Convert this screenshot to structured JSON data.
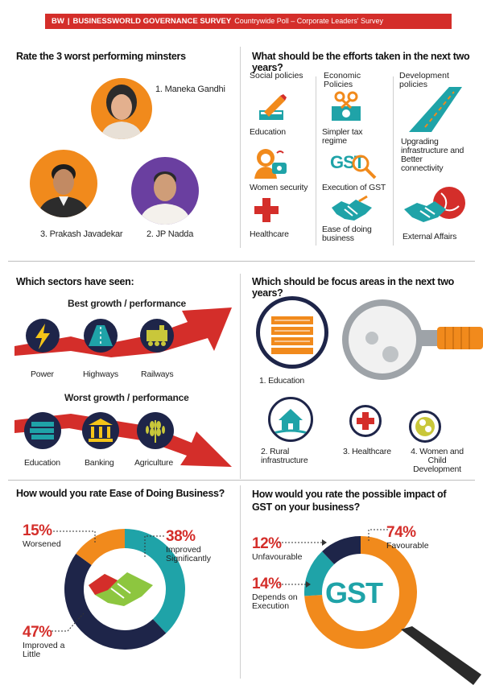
{
  "banner": {
    "brand": "BW",
    "title": "BUSINESSWORLD GOVERNANCE SURVEY",
    "subtitle": "Countrywide Poll – Corporate Leaders' Survey"
  },
  "ministers": {
    "question": "Rate the 3 worst performing minsters",
    "first": "1. Maneka Gandhi",
    "second": "2. JP Nadda",
    "third": "3. Prakash Javadekar"
  },
  "efforts": {
    "question": "What should be the efforts taken in the next two years?",
    "col1_header": "Social policies",
    "col2_header": "Economic Policies",
    "col3_header": "Development policies",
    "education": "Education",
    "women_security": "Women security",
    "healthcare": "Healthcare",
    "simpler_tax": "Simpler tax regime",
    "execution_gst": "Execution of GST",
    "ease_business": "Ease of doing business",
    "infrastructure": "Upgrading infrastructure and Better connectivity",
    "external_affairs": "External Affairs",
    "gst_icon_text": "GST"
  },
  "sectors": {
    "question": "Which sectors have seen:",
    "best_title": "Best growth / performance",
    "worst_title": "Worst growth / performance",
    "best": [
      "Power",
      "Highways",
      "Railways"
    ],
    "worst": [
      "Education",
      "Banking",
      "Agriculture"
    ]
  },
  "focus": {
    "question": "Which should be focus areas in the next two years?",
    "education": "1. Education",
    "rural": "2. Rural infrastructure",
    "healthcare": "3. Healthcare",
    "women": "4. Women and Child Development"
  },
  "ease": {
    "question": "How would you rate Ease of Doing Business?",
    "chart_data": {
      "type": "pie",
      "categories": [
        "Improved Significantly",
        "Improved a Little",
        "Worsened"
      ],
      "values": [
        38,
        47,
        15
      ],
      "labels": [
        "38%",
        "47%",
        "15%"
      ],
      "colors": [
        "#1fa3a8",
        "#1e2549",
        "#f18a1c"
      ]
    }
  },
  "gst": {
    "question": "How would you rate the possible impact of GST on your business?",
    "center_text": "GST",
    "chart_data": {
      "type": "pie",
      "categories": [
        "Favourable",
        "Depends on Execution",
        "Unfavourable"
      ],
      "values": [
        74,
        14,
        12
      ],
      "labels": [
        "74%",
        "14%",
        "12%"
      ],
      "colors": [
        "#f18a1c",
        "#1fa3a8",
        "#1e2549"
      ]
    }
  },
  "colors": {
    "accent": "#d42e2a",
    "navy": "#1e2549",
    "teal": "#1fa3a8",
    "orange": "#f18a1c"
  }
}
